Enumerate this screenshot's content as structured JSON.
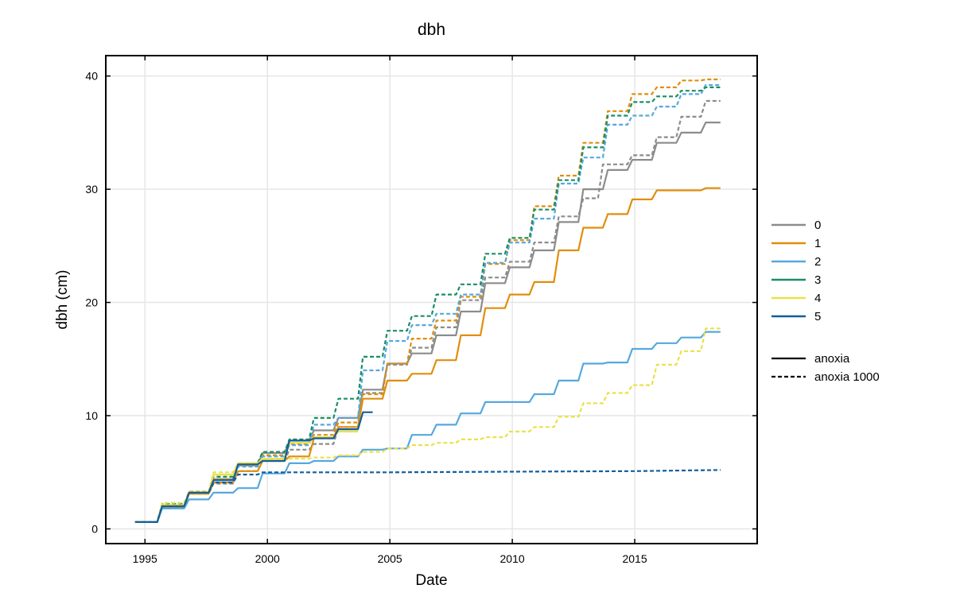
{
  "chart_data": {
    "type": "line",
    "title": "dbh",
    "xlabel": "Date",
    "ylabel": "dbh (cm)",
    "xlim": [
      1993.4,
      2020.0
    ],
    "ylim": [
      -1.3,
      41.8
    ],
    "xticks": [
      1995,
      2000,
      2005,
      2010,
      2015
    ],
    "xtick_labels": [
      "1995",
      "2000",
      "2005",
      "2010",
      "2015"
    ],
    "yticks": [
      0,
      10,
      20,
      30,
      40
    ],
    "ytick_labels": [
      "0",
      "10",
      "20",
      "30",
      "40"
    ],
    "grid": true,
    "legend_placement": "right",
    "series_legend": [
      {
        "label": "0",
        "color": "#8c8c8c"
      },
      {
        "label": "1",
        "color": "#e08e0b"
      },
      {
        "label": "2",
        "color": "#56a8de"
      },
      {
        "label": "3",
        "color": "#1a8f63"
      },
      {
        "label": "4",
        "color": "#ece04a"
      },
      {
        "label": "5",
        "color": "#135f9c"
      }
    ],
    "style_legend": [
      {
        "label": "anoxia",
        "dash": "solid"
      },
      {
        "label": "anoxia 1000",
        "dash": "dashed"
      }
    ],
    "series": [
      {
        "label": "0",
        "style": "solid",
        "color": "#8c8c8c",
        "x": [
          1994.6,
          1995.5,
          1995.7,
          1996.6,
          1996.8,
          1997.6,
          1997.8,
          1998.6,
          1998.8,
          1999.6,
          1999.8,
          2000.7,
          2000.9,
          2001.7,
          2001.9,
          2002.7,
          2002.9,
          2003.7,
          2003.9,
          2004.7,
          2004.9,
          2005.7,
          2005.9,
          2006.7,
          2006.9,
          2007.7,
          2007.9,
          2008.7,
          2008.9,
          2009.7,
          2009.9,
          2010.7,
          2010.9,
          2011.7,
          2011.9,
          2012.7,
          2012.9,
          2013.7,
          2013.9,
          2014.7,
          2014.9,
          2015.7,
          2015.9,
          2016.7,
          2016.9,
          2017.7,
          2017.9,
          2018.5
        ],
        "y": [
          0.6,
          0.6,
          2.0,
          2.0,
          3.2,
          3.2,
          4.4,
          4.4,
          5.6,
          5.6,
          6.7,
          6.7,
          7.8,
          7.8,
          8.7,
          8.7,
          9.8,
          9.8,
          12.3,
          12.3,
          14.6,
          14.6,
          15.5,
          15.5,
          17.1,
          17.1,
          19.2,
          19.2,
          21.7,
          21.7,
          23.1,
          23.1,
          24.6,
          24.6,
          27.1,
          27.1,
          30.0,
          30.0,
          31.7,
          31.7,
          32.6,
          32.6,
          34.1,
          34.1,
          35.0,
          35.0,
          35.9,
          35.9
        ]
      },
      {
        "label": "0",
        "style": "dashed",
        "color": "#8c8c8c",
        "x": [
          1994.6,
          1995.5,
          1995.7,
          1996.6,
          1996.8,
          1997.6,
          1997.8,
          1998.6,
          1998.8,
          1999.6,
          1999.8,
          2000.7,
          2000.9,
          2001.7,
          2001.9,
          2002.7,
          2002.9,
          2003.7,
          2003.9,
          2004.7,
          2004.9,
          2005.7,
          2005.9,
          2006.7,
          2006.9,
          2007.7,
          2007.9,
          2008.7,
          2008.9,
          2009.7,
          2009.9,
          2010.7,
          2010.9,
          2011.7,
          2011.9,
          2012.7,
          2012.9,
          2013.5,
          2013.7,
          2014.7,
          2014.9,
          2015.7,
          2015.9,
          2016.7,
          2016.9,
          2017.7,
          2017.9,
          2018.5
        ],
        "y": [
          0.6,
          0.6,
          2.1,
          2.1,
          3.1,
          3.1,
          4.0,
          4.0,
          5.1,
          5.1,
          6.0,
          6.0,
          7.0,
          7.0,
          7.5,
          7.5,
          9.0,
          9.0,
          12.0,
          12.0,
          14.5,
          14.5,
          16.0,
          16.0,
          17.8,
          17.8,
          20.2,
          20.2,
          22.2,
          22.2,
          23.6,
          23.6,
          25.3,
          25.3,
          27.6,
          27.6,
          29.2,
          29.2,
          32.2,
          32.2,
          33.0,
          33.0,
          34.6,
          34.6,
          36.4,
          36.4,
          37.8,
          37.8
        ]
      },
      {
        "label": "1",
        "style": "solid",
        "color": "#e08e0b",
        "x": [
          1994.6,
          1995.5,
          1995.7,
          1996.6,
          1996.8,
          1997.6,
          1997.8,
          1998.6,
          1998.8,
          1999.6,
          1999.8,
          2000.7,
          2000.9,
          2001.7,
          2001.9,
          2002.7,
          2002.9,
          2003.7,
          2003.9,
          2004.7,
          2004.9,
          2005.7,
          2005.9,
          2006.7,
          2006.9,
          2007.7,
          2007.9,
          2008.7,
          2008.9,
          2009.7,
          2009.9,
          2010.7,
          2010.9,
          2011.7,
          2011.9,
          2012.7,
          2012.9,
          2013.7,
          2013.9,
          2014.7,
          2014.9,
          2015.7,
          2015.9,
          2016.7,
          2016.9,
          2017.7,
          2017.9,
          2018.5
        ],
        "y": [
          0.6,
          0.6,
          1.9,
          1.9,
          3.1,
          3.1,
          4.1,
          4.1,
          5.1,
          5.1,
          6.0,
          6.0,
          6.4,
          6.4,
          8.0,
          8.0,
          9.0,
          9.0,
          11.5,
          11.5,
          13.1,
          13.1,
          13.7,
          13.7,
          14.9,
          14.9,
          17.1,
          17.1,
          19.5,
          19.5,
          20.7,
          20.7,
          21.8,
          21.8,
          24.6,
          24.6,
          26.6,
          26.6,
          27.8,
          27.8,
          29.1,
          29.1,
          29.9,
          29.9,
          29.9,
          29.9,
          30.1,
          30.1
        ]
      },
      {
        "label": "1",
        "style": "dashed",
        "color": "#e08e0b",
        "x": [
          1994.6,
          1995.5,
          1995.7,
          1996.6,
          1996.8,
          1997.6,
          1997.8,
          1998.6,
          1998.8,
          1999.6,
          1999.8,
          2000.7,
          2000.9,
          2001.7,
          2001.9,
          2002.7,
          2002.9,
          2003.7,
          2003.9,
          2004.7,
          2004.9,
          2005.7,
          2005.9,
          2006.7,
          2006.9,
          2007.7,
          2007.9,
          2008.7,
          2008.9,
          2009.7,
          2009.9,
          2010.7,
          2010.9,
          2011.7,
          2011.9,
          2012.7,
          2012.9,
          2013.7,
          2013.9,
          2014.7,
          2014.9,
          2015.7,
          2015.9,
          2016.7,
          2016.9,
          2017.7,
          2017.9,
          2018.5
        ],
        "y": [
          0.6,
          0.6,
          2.2,
          2.2,
          3.3,
          3.3,
          4.4,
          4.4,
          5.6,
          5.6,
          6.5,
          6.5,
          7.5,
          7.5,
          8.3,
          8.3,
          9.4,
          9.4,
          11.9,
          11.9,
          14.6,
          14.6,
          16.8,
          16.8,
          18.4,
          18.4,
          20.5,
          20.5,
          23.4,
          23.4,
          25.5,
          25.5,
          28.5,
          28.5,
          31.2,
          31.2,
          34.1,
          34.1,
          36.9,
          36.9,
          38.4,
          38.4,
          39.0,
          39.0,
          39.6,
          39.6,
          39.7,
          39.7
        ]
      },
      {
        "label": "2",
        "style": "solid",
        "color": "#56a8de",
        "x": [
          1994.6,
          1995.5,
          1995.7,
          1996.6,
          1996.8,
          1997.6,
          1997.8,
          1998.6,
          1998.8,
          1999.6,
          1999.8,
          2000.7,
          2000.9,
          2001.7,
          2001.9,
          2002.7,
          2002.9,
          2003.7,
          2003.9,
          2004.7,
          2004.9,
          2005.7,
          2005.9,
          2006.7,
          2006.9,
          2007.7,
          2007.9,
          2008.7,
          2008.9,
          2009.7,
          2009.9,
          2010.7,
          2010.9,
          2011.7,
          2011.9,
          2012.7,
          2012.9,
          2013.7,
          2013.9,
          2014.7,
          2014.9,
          2015.7,
          2015.9,
          2016.7,
          2016.9,
          2017.7,
          2017.9,
          2018.5
        ],
        "y": [
          0.6,
          0.6,
          1.8,
          1.8,
          2.6,
          2.6,
          3.2,
          3.2,
          3.6,
          3.6,
          4.9,
          4.9,
          5.8,
          5.8,
          6.0,
          6.0,
          6.4,
          6.4,
          7.0,
          7.0,
          7.1,
          7.1,
          8.3,
          8.3,
          9.2,
          9.2,
          10.2,
          10.2,
          11.2,
          11.2,
          11.2,
          11.2,
          11.9,
          11.9,
          13.1,
          13.1,
          14.6,
          14.6,
          14.7,
          14.7,
          15.9,
          15.9,
          16.4,
          16.4,
          16.9,
          16.9,
          17.4,
          17.4
        ]
      },
      {
        "label": "2",
        "style": "dashed",
        "color": "#56a8de",
        "x": [
          1994.6,
          1995.5,
          1995.7,
          1996.6,
          1996.8,
          1997.6,
          1997.8,
          1998.6,
          1998.8,
          1999.6,
          1999.8,
          2000.7,
          2000.9,
          2001.7,
          2001.9,
          2002.7,
          2002.9,
          2003.7,
          2003.9,
          2004.7,
          2004.9,
          2005.7,
          2005.9,
          2006.7,
          2006.9,
          2007.7,
          2007.9,
          2008.7,
          2008.9,
          2009.7,
          2009.9,
          2010.7,
          2010.9,
          2011.7,
          2011.9,
          2012.7,
          2012.9,
          2013.7,
          2013.9,
          2014.7,
          2014.9,
          2015.7,
          2015.9,
          2016.7,
          2016.9,
          2017.7,
          2017.9,
          2018.5
        ],
        "y": [
          0.6,
          0.6,
          2.1,
          2.1,
          3.2,
          3.2,
          4.3,
          4.3,
          5.5,
          5.5,
          6.4,
          6.4,
          7.4,
          7.4,
          9.2,
          9.2,
          9.8,
          9.8,
          14.0,
          14.0,
          16.6,
          16.6,
          18.0,
          18.0,
          19.0,
          19.0,
          20.7,
          20.7,
          23.5,
          23.5,
          25.3,
          25.3,
          27.4,
          27.4,
          30.5,
          30.5,
          32.8,
          32.8,
          35.7,
          35.7,
          36.5,
          36.5,
          37.3,
          37.3,
          38.4,
          38.4,
          39.2,
          39.2
        ]
      },
      {
        "label": "3",
        "style": "dashed",
        "color": "#1a8f63",
        "x": [
          1994.6,
          1995.5,
          1995.7,
          1996.6,
          1996.8,
          1997.6,
          1997.8,
          1998.6,
          1998.8,
          1999.6,
          1999.8,
          2000.7,
          2000.9,
          2001.7,
          2001.9,
          2002.7,
          2002.9,
          2003.7,
          2003.9,
          2004.7,
          2004.9,
          2005.7,
          2005.9,
          2006.7,
          2006.9,
          2007.7,
          2007.9,
          2008.7,
          2008.9,
          2009.7,
          2009.9,
          2010.7,
          2010.9,
          2011.7,
          2011.9,
          2012.7,
          2012.9,
          2013.7,
          2013.9,
          2014.7,
          2014.9,
          2015.7,
          2015.9,
          2016.7,
          2016.9,
          2017.7,
          2017.9,
          2018.5
        ],
        "y": [
          0.6,
          0.6,
          2.2,
          2.2,
          3.3,
          3.3,
          4.6,
          4.6,
          5.8,
          5.8,
          6.8,
          6.8,
          7.9,
          7.9,
          9.8,
          9.8,
          11.5,
          11.5,
          15.2,
          15.2,
          17.5,
          17.5,
          18.8,
          18.8,
          20.7,
          20.7,
          21.6,
          21.6,
          24.3,
          24.3,
          25.7,
          25.7,
          28.2,
          28.2,
          30.8,
          30.8,
          33.7,
          33.7,
          36.5,
          36.5,
          37.7,
          37.7,
          38.2,
          38.2,
          38.7,
          38.7,
          39.0,
          39.0
        ]
      },
      {
        "label": "4",
        "style": "solid",
        "color": "#ece04a",
        "x": [
          1994.6,
          1995.5,
          1995.7,
          1996.6,
          1996.8,
          1997.6,
          1997.8,
          1998.6,
          1998.8,
          1999.6,
          1999.8,
          2000.7,
          2000.9,
          2001.7,
          2001.9,
          2002.7,
          2002.9,
          2003.7
        ],
        "y": [
          0.6,
          0.6,
          2.1,
          2.1,
          3.2,
          3.2,
          4.8,
          4.8,
          5.8,
          5.8,
          6.2,
          6.2,
          7.6,
          7.6,
          8.1,
          8.1,
          8.6,
          8.6
        ]
      },
      {
        "label": "4",
        "style": "dashed",
        "color": "#ece04a",
        "x": [
          1994.6,
          1995.5,
          1995.7,
          1996.6,
          1996.8,
          1997.6,
          1997.8,
          1998.6,
          1998.8,
          1999.6,
          1999.8,
          2000.7,
          2000.9,
          2001.7,
          2001.9,
          2002.7,
          2002.9,
          2003.7,
          2003.9,
          2004.7,
          2004.9,
          2005.7,
          2005.9,
          2006.7,
          2006.9,
          2007.7,
          2007.9,
          2008.7,
          2008.9,
          2009.7,
          2009.9,
          2010.7,
          2010.9,
          2011.7,
          2011.9,
          2012.7,
          2012.9,
          2013.7,
          2013.9,
          2014.7,
          2014.9,
          2015.7,
          2015.9,
          2016.7,
          2016.9,
          2017.7,
          2017.9,
          2018.5
        ],
        "y": [
          0.6,
          0.6,
          2.3,
          2.3,
          3.3,
          3.3,
          5.0,
          5.0,
          5.8,
          5.8,
          6.1,
          6.1,
          6.2,
          6.2,
          6.3,
          6.3,
          6.5,
          6.5,
          6.8,
          6.8,
          7.1,
          7.1,
          7.4,
          7.4,
          7.6,
          7.6,
          7.9,
          7.9,
          8.1,
          8.1,
          8.6,
          8.6,
          9.0,
          9.0,
          9.9,
          9.9,
          11.1,
          11.1,
          12.0,
          12.0,
          12.7,
          12.7,
          14.5,
          14.5,
          15.7,
          15.7,
          17.7,
          17.7
        ]
      },
      {
        "label": "5",
        "style": "solid",
        "color": "#135f9c",
        "x": [
          1994.6,
          1995.5,
          1995.7,
          1996.6,
          1996.8,
          1997.6,
          1997.8,
          1998.6,
          1998.8,
          1999.6,
          1999.8,
          2000.7,
          2000.9,
          2001.7,
          2001.9,
          2002.7,
          2002.9,
          2003.7,
          2003.9,
          2004.3
        ],
        "y": [
          0.6,
          0.6,
          2.0,
          2.0,
          3.2,
          3.2,
          4.3,
          4.3,
          5.7,
          5.7,
          6.0,
          6.0,
          7.8,
          7.8,
          8.0,
          8.0,
          8.8,
          8.8,
          10.3,
          10.3
        ]
      },
      {
        "label": "5",
        "style": "dashed",
        "color": "#135f9c",
        "x": [
          1994.6,
          1995.5,
          1995.7,
          1996.6,
          1996.8,
          1997.6,
          1997.8,
          1998.6,
          1998.8,
          1999.6,
          1999.8,
          2000.7,
          2005.0,
          2010.0,
          2015.0,
          2018.5
        ],
        "y": [
          0.6,
          0.6,
          2.0,
          2.0,
          3.2,
          3.2,
          4.1,
          4.1,
          4.8,
          4.8,
          5.0,
          5.0,
          5.0,
          5.05,
          5.1,
          5.2
        ]
      }
    ]
  }
}
